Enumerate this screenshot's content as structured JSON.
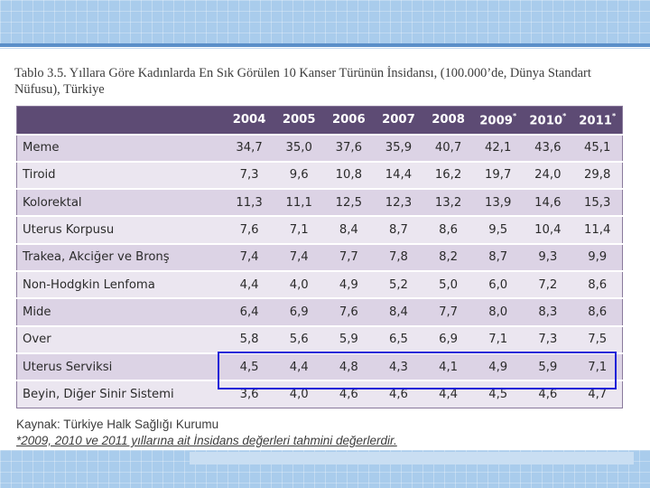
{
  "title": "Tablo 3.5. Yıllara Göre Kadınlarda En Sık Görülen 10 Kanser Türünün İnsidansı, (100.000’de, Dünya Standart Nüfusu), Türkiye",
  "table": {
    "years": [
      {
        "label": "2004",
        "mark": ""
      },
      {
        "label": "2005",
        "mark": ""
      },
      {
        "label": "2006",
        "mark": ""
      },
      {
        "label": "2007",
        "mark": ""
      },
      {
        "label": "2008",
        "mark": ""
      },
      {
        "label": "2009",
        "mark": "*"
      },
      {
        "label": "2010",
        "mark": "*"
      },
      {
        "label": "2011",
        "mark": "*"
      }
    ],
    "rows": [
      {
        "name": "Meme",
        "values": [
          "34,7",
          "35,0",
          "37,6",
          "35,9",
          "40,7",
          "42,1",
          "43,6",
          "45,1"
        ]
      },
      {
        "name": "Tiroid",
        "values": [
          "7,3",
          "9,6",
          "10,8",
          "14,4",
          "16,2",
          "19,7",
          "24,0",
          "29,8"
        ]
      },
      {
        "name": "Kolorektal",
        "values": [
          "11,3",
          "11,1",
          "12,5",
          "12,3",
          "13,2",
          "13,9",
          "14,6",
          "15,3"
        ]
      },
      {
        "name": "Uterus Korpusu",
        "values": [
          "7,6",
          "7,1",
          "8,4",
          "8,7",
          "8,6",
          "9,5",
          "10,4",
          "11,4"
        ]
      },
      {
        "name": "Trakea, Akciğer ve Bronş",
        "values": [
          "7,4",
          "7,4",
          "7,7",
          "7,8",
          "8,2",
          "8,7",
          "9,3",
          "9,9"
        ]
      },
      {
        "name": "Non-Hodgkin Lenfoma",
        "values": [
          "4,4",
          "4,0",
          "4,9",
          "5,2",
          "5,0",
          "6,0",
          "7,2",
          "8,6"
        ]
      },
      {
        "name": "Mide",
        "values": [
          "6,4",
          "6,9",
          "7,6",
          "8,4",
          "7,7",
          "8,0",
          "8,3",
          "8,6"
        ]
      },
      {
        "name": "Over",
        "values": [
          "5,8",
          "5,6",
          "5,9",
          "6,5",
          "6,9",
          "7,1",
          "7,3",
          "7,5"
        ]
      },
      {
        "name": "Uterus Serviksi",
        "values": [
          "4,5",
          "4,4",
          "4,8",
          "4,3",
          "4,1",
          "4,9",
          "5,9",
          "7,1"
        ]
      },
      {
        "name": "Beyin, Diğer Sinir Sistemi",
        "values": [
          "3,6",
          "4,0",
          "4,6",
          "4,6",
          "4,4",
          "4,5",
          "4,6",
          "4,7"
        ]
      }
    ]
  },
  "source": "Kaynak: Türkiye Halk Sağlığı Kurumu",
  "footnote": "*2009, 2010 ve 2011 yıllarına ait İnsidans değerleri tahmini değerlerdir.",
  "colors": {
    "header": "#5d4b74",
    "row_odd": "#dcd3e5",
    "row_even": "#ebe6f0",
    "highlight": "#1c21d8",
    "band": "#a9ccec"
  }
}
